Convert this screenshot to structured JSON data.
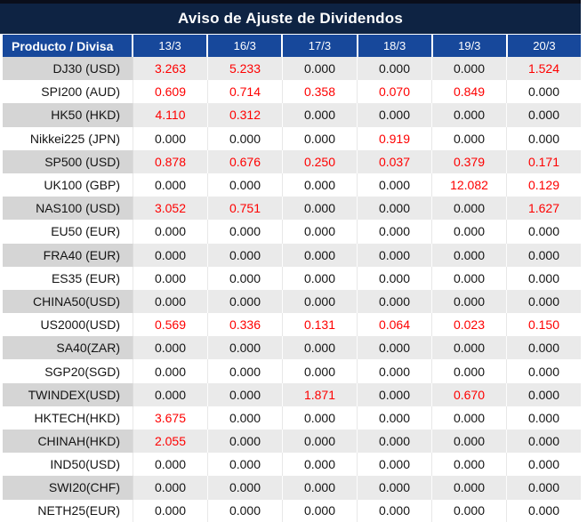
{
  "title": "Aviso de Ajuste de Dividendos",
  "colors": {
    "title_bar_bg": "#0E2343",
    "header_bg": "#17489B",
    "positive_value_red": "#FE0000",
    "stripe_product_bg": "#D5D5D5",
    "stripe_value_bg": "#EAEAEA"
  },
  "table": {
    "columns": [
      "Producto / Divisa",
      "13/3",
      "16/3",
      "17/3",
      "18/3",
      "19/3",
      "20/3"
    ],
    "rows": [
      {
        "product": "DJ30 (USD)",
        "values": [
          "3.263",
          "5.233",
          "0.000",
          "0.000",
          "0.000",
          "1.524"
        ]
      },
      {
        "product": "SPI200 (AUD)",
        "values": [
          "0.609",
          "0.714",
          "0.358",
          "0.070",
          "0.849",
          "0.000"
        ]
      },
      {
        "product": "HK50 (HKD)",
        "values": [
          "4.110",
          "0.312",
          "0.000",
          "0.000",
          "0.000",
          "0.000"
        ]
      },
      {
        "product": "Nikkei225 (JPN)",
        "values": [
          "0.000",
          "0.000",
          "0.000",
          "0.919",
          "0.000",
          "0.000"
        ]
      },
      {
        "product": "SP500 (USD)",
        "values": [
          "0.878",
          "0.676",
          "0.250",
          "0.037",
          "0.379",
          "0.171"
        ]
      },
      {
        "product": "UK100 (GBP)",
        "values": [
          "0.000",
          "0.000",
          "0.000",
          "0.000",
          "12.082",
          "0.129"
        ]
      },
      {
        "product": "NAS100 (USD)",
        "values": [
          "3.052",
          "0.751",
          "0.000",
          "0.000",
          "0.000",
          "1.627"
        ]
      },
      {
        "product": "EU50 (EUR)",
        "values": [
          "0.000",
          "0.000",
          "0.000",
          "0.000",
          "0.000",
          "0.000"
        ]
      },
      {
        "product": "FRA40 (EUR)",
        "values": [
          "0.000",
          "0.000",
          "0.000",
          "0.000",
          "0.000",
          "0.000"
        ]
      },
      {
        "product": "ES35 (EUR)",
        "values": [
          "0.000",
          "0.000",
          "0.000",
          "0.000",
          "0.000",
          "0.000"
        ]
      },
      {
        "product": "CHINA50(USD)",
        "values": [
          "0.000",
          "0.000",
          "0.000",
          "0.000",
          "0.000",
          "0.000"
        ]
      },
      {
        "product": "US2000(USD)",
        "values": [
          "0.569",
          "0.336",
          "0.131",
          "0.064",
          "0.023",
          "0.150"
        ]
      },
      {
        "product": "SA40(ZAR)",
        "values": [
          "0.000",
          "0.000",
          "0.000",
          "0.000",
          "0.000",
          "0.000"
        ]
      },
      {
        "product": "SGP20(SGD)",
        "values": [
          "0.000",
          "0.000",
          "0.000",
          "0.000",
          "0.000",
          "0.000"
        ]
      },
      {
        "product": "TWINDEX(USD)",
        "values": [
          "0.000",
          "0.000",
          "1.871",
          "0.000",
          "0.670",
          "0.000"
        ]
      },
      {
        "product": "HKTECH(HKD)",
        "values": [
          "3.675",
          "0.000",
          "0.000",
          "0.000",
          "0.000",
          "0.000"
        ]
      },
      {
        "product": "CHINAH(HKD)",
        "values": [
          "2.055",
          "0.000",
          "0.000",
          "0.000",
          "0.000",
          "0.000"
        ]
      },
      {
        "product": "IND50(USD)",
        "values": [
          "0.000",
          "0.000",
          "0.000",
          "0.000",
          "0.000",
          "0.000"
        ]
      },
      {
        "product": "SWI20(CHF)",
        "values": [
          "0.000",
          "0.000",
          "0.000",
          "0.000",
          "0.000",
          "0.000"
        ]
      },
      {
        "product": "NETH25(EUR)",
        "values": [
          "0.000",
          "0.000",
          "0.000",
          "0.000",
          "0.000",
          "0.000"
        ]
      }
    ]
  }
}
